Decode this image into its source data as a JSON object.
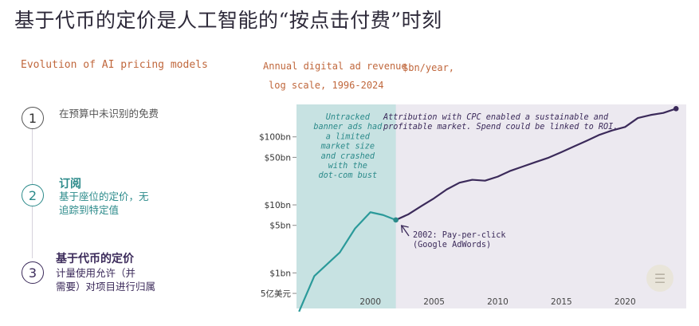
{
  "page": {
    "title": "基于代币的定价是人工智能的“按点击付费”时刻",
    "subtitle": "Evolution of AI pricing models"
  },
  "steps": [
    {
      "number": "1",
      "heading": "",
      "body": "在预算中未识别的免费",
      "color": "#555555"
    },
    {
      "number": "2",
      "heading": "订阅",
      "body": "基于座位的定价，无\n追踪到特定值",
      "color": "#2b8a8a"
    },
    {
      "number": "3",
      "heading": "基于代币的定价",
      "body": "计量使用允许（并\n需要）对项目进行归属",
      "color": "#3b2a5a"
    }
  ],
  "chart_data": {
    "type": "line",
    "title": "Annual digital ad revenue",
    "title_unit": "$bn/year,",
    "title_line2": "log scale, 1996-2024",
    "xlabel": "",
    "ylabel": "",
    "y_scale": "log",
    "ylim": [
      0.3,
      300
    ],
    "xlim": [
      1994.2,
      2024.8
    ],
    "x_ticks": [
      2000,
      2005,
      2010,
      2015,
      2020
    ],
    "y_ticks": [
      {
        "value": 0.5,
        "label": "5亿美元"
      },
      {
        "value": 1,
        "label": "$1bn"
      },
      {
        "value": 5,
        "label": "$5bn"
      },
      {
        "value": 10,
        "label": "$10bn"
      },
      {
        "value": 50,
        "label": "$50bn"
      },
      {
        "value": 100,
        "label": "$100bn"
      }
    ],
    "series": [
      {
        "name": "",
        "color": "#2b9a9a",
        "x": [
          1994.4,
          1995.6,
          1997.6,
          1998.8,
          2000,
          2001,
          2002
        ],
        "values": [
          0.27,
          0.9,
          2.0,
          4.5,
          7.8,
          7.1,
          6.0
        ]
      },
      {
        "name": "",
        "color": "#3b2a5a",
        "x": [
          2002,
          2003,
          2004,
          2005,
          2006,
          2007,
          2008,
          2009,
          2010,
          2011,
          2012,
          2013,
          2014,
          2015,
          2016,
          2017,
          2018,
          2019,
          2020,
          2021,
          2022,
          2023,
          2024
        ],
        "values": [
          6.0,
          7.3,
          9.6,
          12.5,
          16.9,
          21.2,
          23.4,
          22.7,
          26.0,
          31.7,
          36.8,
          42.8,
          49.5,
          59.6,
          72.5,
          88.0,
          107.5,
          124.6,
          139.8,
          189.3,
          209.7,
          225,
          260
        ]
      }
    ],
    "shaded_region": {
      "from": 1994.2,
      "to": 2002,
      "color": "#c7e2e2"
    },
    "annotations": {
      "left_box": "Untracked\nbanner ads had\na limited\nmarket size\nand crashed\nwith the\ndot-com bust",
      "right_text_1": "Attribution  with CPC enabled a sustainable and",
      "right_text_2": "profitable market. Spend could be linked to ROI.",
      "callout_1": "2002: Pay-per-click",
      "callout_2": "(Google AdWords)"
    }
  },
  "colors": {
    "accent_orange": "#c0673c",
    "teal": "#2b8a8a",
    "purple": "#3b2a5a",
    "plot_bg": "#ece9f0",
    "shade": "#c7e2e2"
  },
  "badge_icon": "document-icon"
}
